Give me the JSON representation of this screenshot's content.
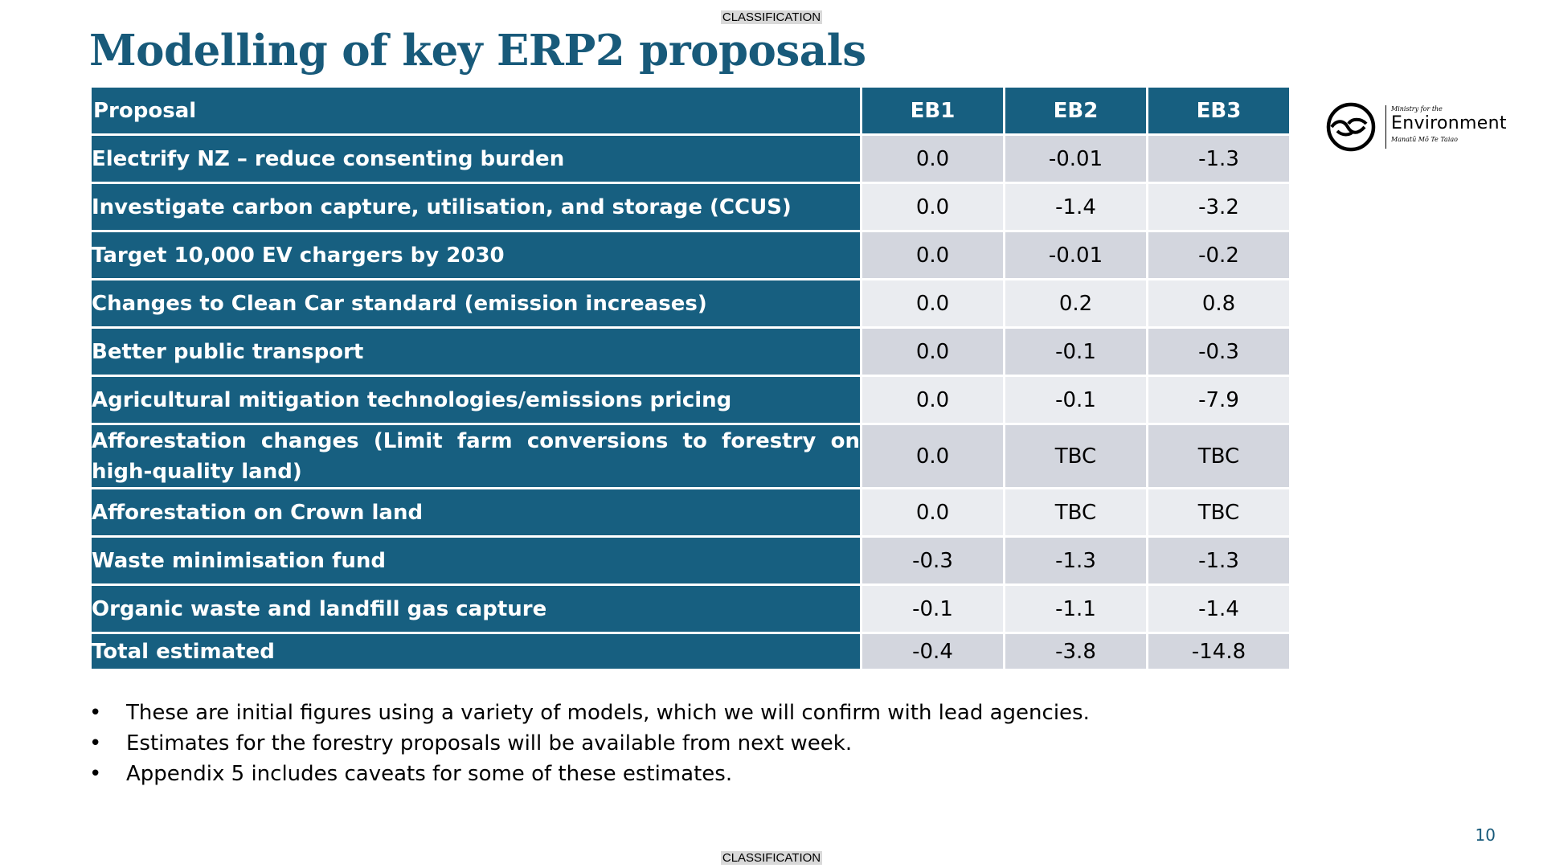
{
  "classification": {
    "top": "CLASSIFICATION",
    "bottom": "CLASSIFICATION"
  },
  "title": "Modelling of key ERP2 proposals",
  "table": {
    "headers": [
      "Proposal",
      "EB1",
      "EB2",
      "EB3"
    ],
    "rows": [
      {
        "proposal": "Electrify NZ – reduce consenting burden",
        "eb1": "0.0",
        "eb2": "-0.01",
        "eb3": "-1.3"
      },
      {
        "proposal": "Investigate carbon capture, utilisation, and storage (CCUS)",
        "eb1": "0.0",
        "eb2": "-1.4",
        "eb3": "-3.2"
      },
      {
        "proposal": "Target 10,000 EV chargers by 2030",
        "eb1": "0.0",
        "eb2": "-0.01",
        "eb3": "-0.2"
      },
      {
        "proposal": "Changes to Clean Car standard (emission increases)",
        "eb1": "0.0",
        "eb2": "0.2",
        "eb3": "0.8"
      },
      {
        "proposal": "Better public transport",
        "eb1": "0.0",
        "eb2": "-0.1",
        "eb3": "-0.3"
      },
      {
        "proposal": "Agricultural mitigation technologies/emissions pricing",
        "eb1": "0.0",
        "eb2": "-0.1",
        "eb3": "-7.9"
      },
      {
        "proposal": "Afforestation changes (Limit farm conversions to forestry on high-quality land)",
        "eb1": "0.0",
        "eb2": "TBC",
        "eb3": "TBC"
      },
      {
        "proposal": "Afforestation on Crown land",
        "eb1": "0.0",
        "eb2": "TBC",
        "eb3": "TBC"
      },
      {
        "proposal": "Waste minimisation fund",
        "eb1": "-0.3",
        "eb2": "-1.3",
        "eb3": "-1.3"
      },
      {
        "proposal": "Organic waste and landfill gas capture",
        "eb1": "-0.1",
        "eb2": "-1.1",
        "eb3": "-1.4"
      },
      {
        "proposal": "Total estimated",
        "eb1": "-0.4",
        "eb2": "-3.8",
        "eb3": "-14.8"
      }
    ]
  },
  "logo": {
    "small_text": "Ministry for the",
    "main_text": "Environment",
    "sub_text": "Manatū Mō Te Taiao",
    "icon": "ministry-environment-logo-icon"
  },
  "notes": [
    "These are initial figures using a variety of models, which we will confirm with lead agencies.",
    "Estimates for the forestry proposals will be available from next week.",
    "Appendix 5 includes caveats for some of these estimates."
  ],
  "bullet": "•",
  "page_number": "10",
  "colors": {
    "title": "#185a7a",
    "header_bg": "#175f80",
    "row_odd": "#d3d6de",
    "row_even": "#eaecf0"
  }
}
